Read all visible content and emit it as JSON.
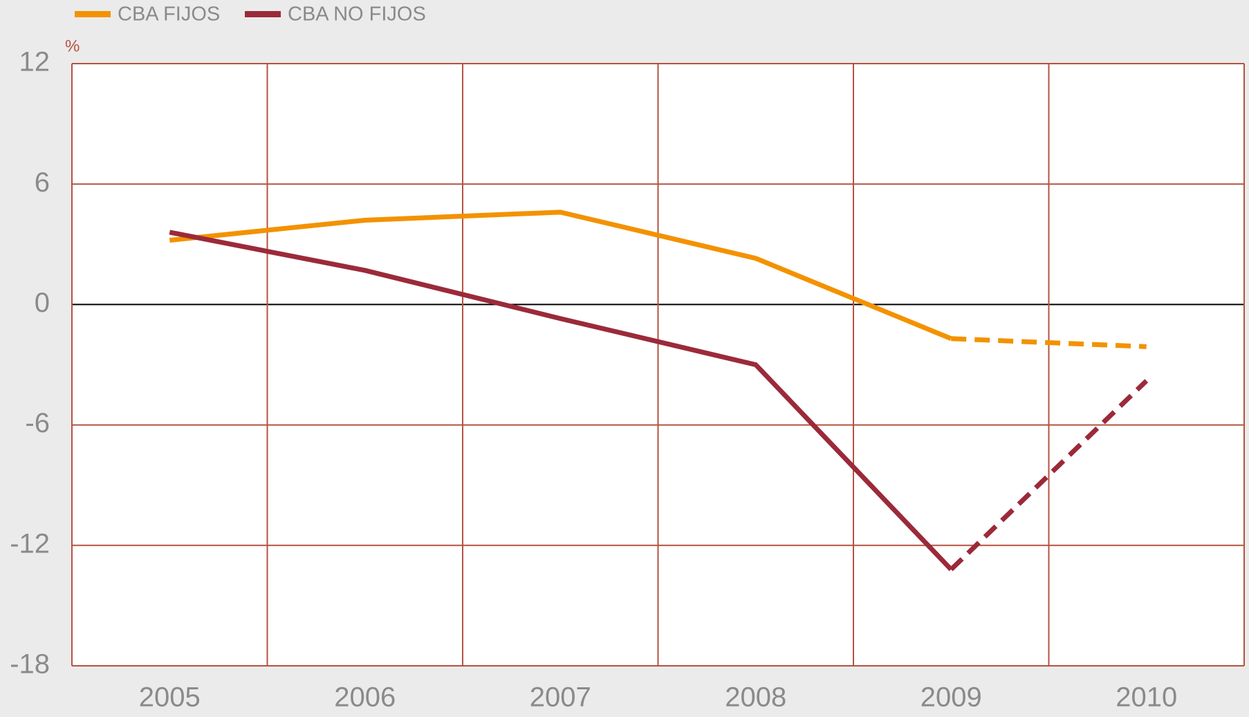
{
  "chart_data": {
    "type": "line",
    "categories": [
      "2005",
      "2006",
      "2007",
      "2008",
      "2009",
      "2010"
    ],
    "series": [
      {
        "name": "CBA FIJOS",
        "color": "#f39200",
        "values": [
          3.2,
          4.2,
          4.6,
          2.3,
          -1.7,
          -2.1
        ]
      },
      {
        "name": "CBA NO FIJOS",
        "color": "#9b2a3a",
        "values": [
          3.6,
          1.7,
          -0.7,
          -3.0,
          -13.2,
          -3.8
        ]
      }
    ],
    "dashed_from_index": 4,
    "y_unit_label": "%",
    "ylim": [
      -18,
      12
    ],
    "yticks": [
      -18,
      -12,
      -6,
      0,
      6,
      12
    ],
    "grid": true,
    "grid_color": "#b5523f",
    "zero_line_color": "#000000",
    "legend": "top-left"
  }
}
